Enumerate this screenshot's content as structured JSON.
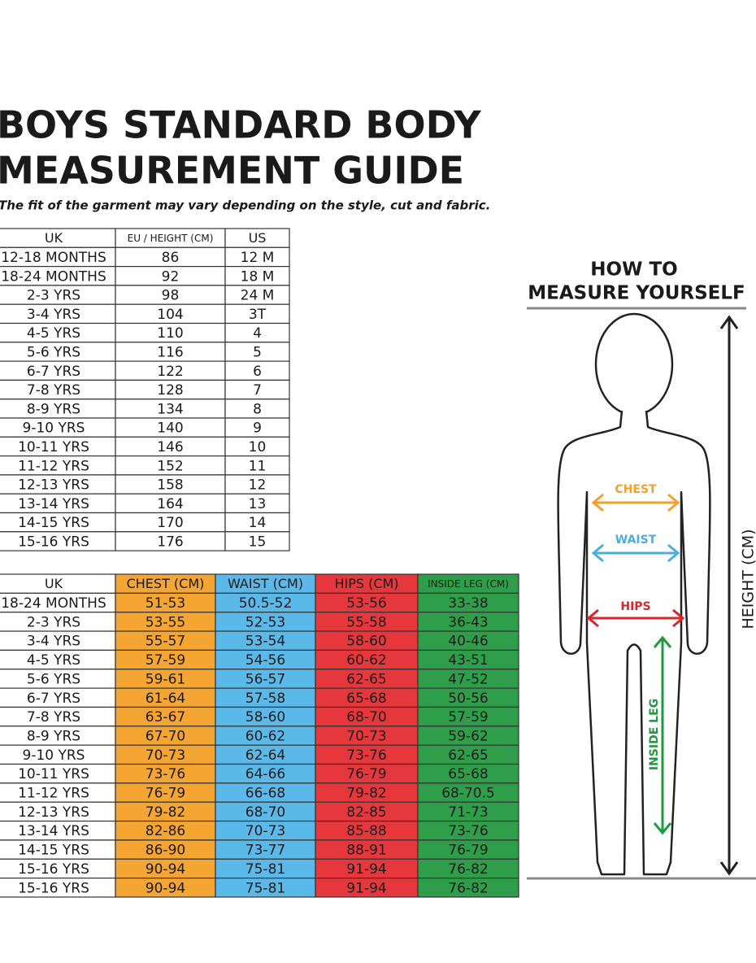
{
  "header": {
    "title_lines": [
      "BOYS STANDARD BODY",
      "MEASUREMENT GUIDE"
    ],
    "subtitle": "The fit of the garment may vary depending on the style, cut and fabric."
  },
  "size_table": {
    "columns": [
      "UK",
      "EU / HEIGHT (CM)",
      "US"
    ],
    "rows": [
      [
        "12-18 MONTHS",
        "86",
        "12 M"
      ],
      [
        "18-24 MONTHS",
        "92",
        "18 M"
      ],
      [
        "2-3 YRS",
        "98",
        "24 M"
      ],
      [
        "3-4 YRS",
        "104",
        "3T"
      ],
      [
        "4-5 YRS",
        "110",
        "4"
      ],
      [
        "5-6 YRS",
        "116",
        "5"
      ],
      [
        "6-7 YRS",
        "122",
        "6"
      ],
      [
        "7-8 YRS",
        "128",
        "7"
      ],
      [
        "8-9 YRS",
        "134",
        "8"
      ],
      [
        "9-10 YRS",
        "140",
        "9"
      ],
      [
        "10-11 YRS",
        "146",
        "10"
      ],
      [
        "11-12 YRS",
        "152",
        "11"
      ],
      [
        "12-13 YRS",
        "158",
        "12"
      ],
      [
        "13-14 YRS",
        "164",
        "13"
      ],
      [
        "14-15 YRS",
        "170",
        "14"
      ],
      [
        "15-16 YRS",
        "176",
        "15"
      ]
    ]
  },
  "measure_table": {
    "columns": [
      "UK",
      "CHEST (CM)",
      "WAIST (CM)",
      "HIPS (CM)",
      "INSIDE LEG (CM)"
    ],
    "rows": [
      [
        "18-24 MONTHS",
        "51-53",
        "50.5-52",
        "53-56",
        "33-38"
      ],
      [
        "2-3 YRS",
        "53-55",
        "52-53",
        "55-58",
        "36-43"
      ],
      [
        "3-4 YRS",
        "55-57",
        "53-54",
        "58-60",
        "40-46"
      ],
      [
        "4-5 YRS",
        "57-59",
        "54-56",
        "60-62",
        "43-51"
      ],
      [
        "5-6 YRS",
        "59-61",
        "56-57",
        "62-65",
        "47-52"
      ],
      [
        "6-7 YRS",
        "61-64",
        "57-58",
        "65-68",
        "50-56"
      ],
      [
        "7-8 YRS",
        "63-67",
        "58-60",
        "68-70",
        "57-59"
      ],
      [
        "8-9 YRS",
        "67-70",
        "60-62",
        "70-73",
        "59-62"
      ],
      [
        "9-10 YRS",
        "70-73",
        "62-64",
        "73-76",
        "62-65"
      ],
      [
        "10-11 YRS",
        "73-76",
        "64-66",
        "76-79",
        "65-68"
      ],
      [
        "11-12 YRS",
        "76-79",
        "66-68",
        "79-82",
        "68-70.5"
      ],
      [
        "12-13 YRS",
        "79-82",
        "68-70",
        "82-85",
        "71-73"
      ],
      [
        "13-14 YRS",
        "82-86",
        "70-73",
        "85-88",
        "73-76"
      ],
      [
        "14-15 YRS",
        "86-90",
        "73-77",
        "88-91",
        "76-79"
      ],
      [
        "15-16 YRS",
        "90-94",
        "75-81",
        "91-94",
        "76-82"
      ],
      [
        "15-16 YRS",
        "90-94",
        "75-81",
        "91-94",
        "76-82"
      ]
    ]
  },
  "diagram": {
    "title_lines": [
      "HOW TO",
      "MEASURE YOURSELF"
    ],
    "chest": "CHEST",
    "waist": "WAIST",
    "hips": "HIPS",
    "inside_leg": "INSIDE LEG",
    "height": "HEIGHT (CM)"
  }
}
